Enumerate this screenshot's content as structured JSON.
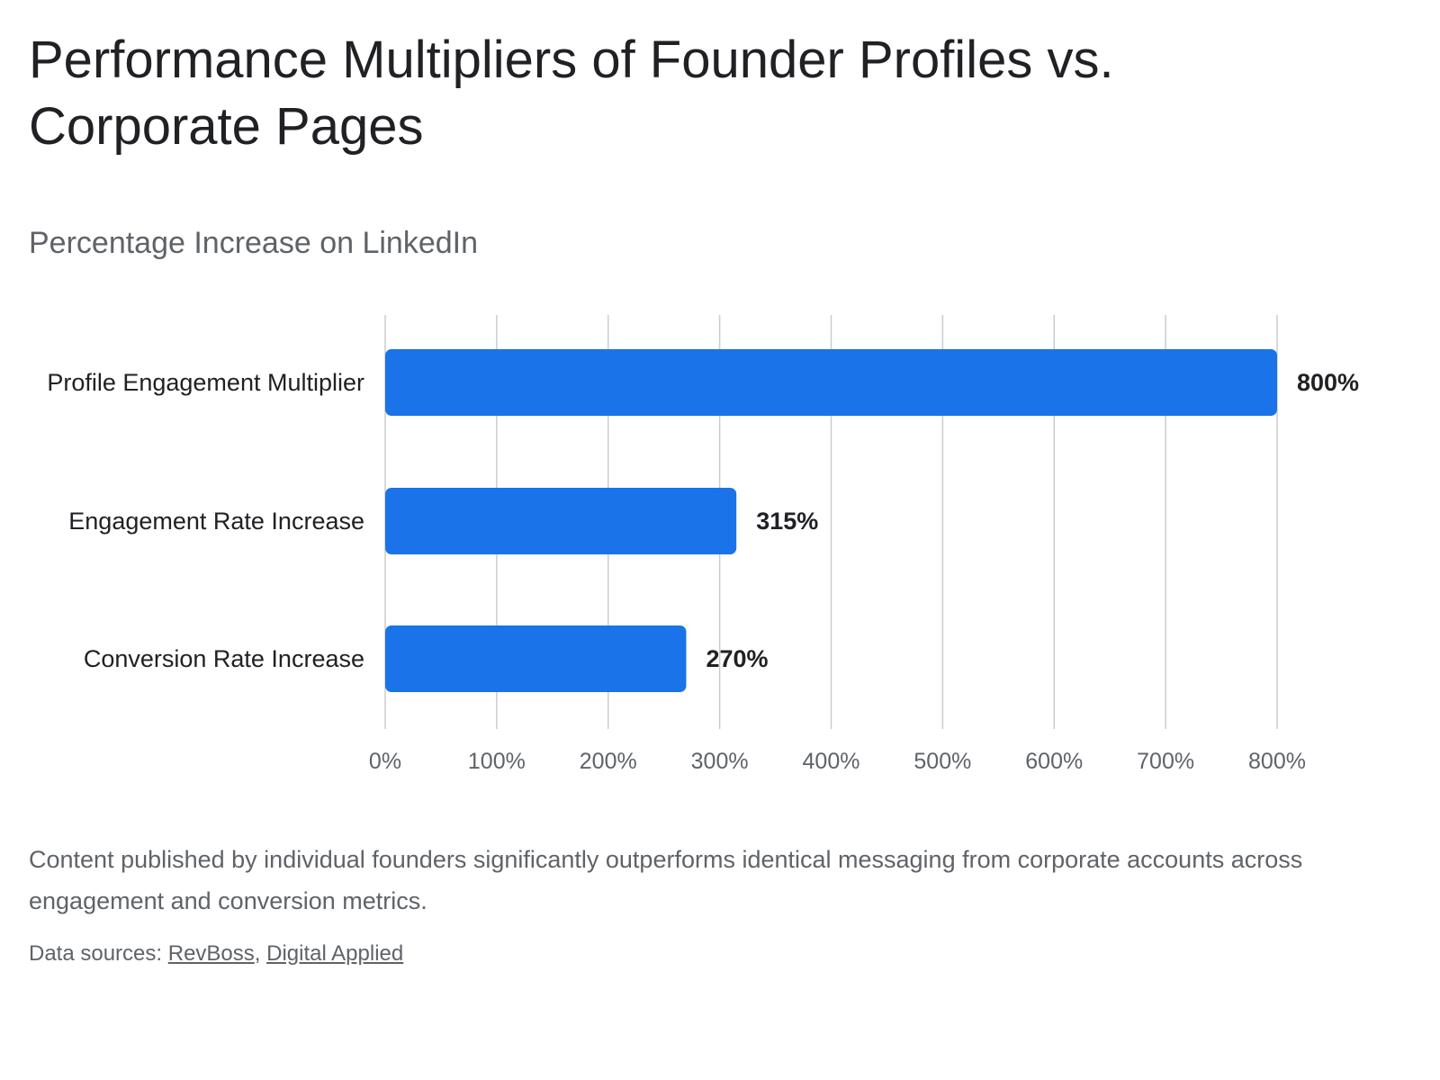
{
  "page": {
    "title": "Performance Multipliers of Founder Profiles vs. Corporate Pages",
    "description": "Content published by individual founders significantly outperforms identical messaging from corporate accounts across engagement and conversion metrics.",
    "sources_prefix": "Data sources: ",
    "sources": [
      {
        "label": "RevBoss"
      },
      {
        "label": "Digital Applied"
      }
    ],
    "source_separator": ", "
  },
  "chart_data": {
    "type": "bar",
    "orientation": "horizontal",
    "title": "Performance Multipliers of Founder Profiles vs. Corporate Pages",
    "subtitle": "Percentage Increase on LinkedIn",
    "categories": [
      "Profile Engagement Multiplier",
      "Engagement Rate Increase",
      "Conversion Rate Increase"
    ],
    "values": [
      800,
      315,
      270
    ],
    "data_labels": [
      "800%",
      "315%",
      "270%"
    ],
    "xlim": [
      0,
      800
    ],
    "x_ticks": [
      0,
      100,
      200,
      300,
      400,
      500,
      600,
      700,
      800
    ],
    "x_tick_labels": [
      "0%",
      "100%",
      "200%",
      "300%",
      "400%",
      "500%",
      "600%",
      "700%",
      "800%"
    ],
    "xlabel": "",
    "ylabel": "",
    "grid": true,
    "legend": "none",
    "colors": {
      "bar": "#1a73e8",
      "grid": "#cccccc",
      "tick_label": "#5f6368",
      "category_label": "#202124",
      "data_label": "#202124"
    }
  }
}
